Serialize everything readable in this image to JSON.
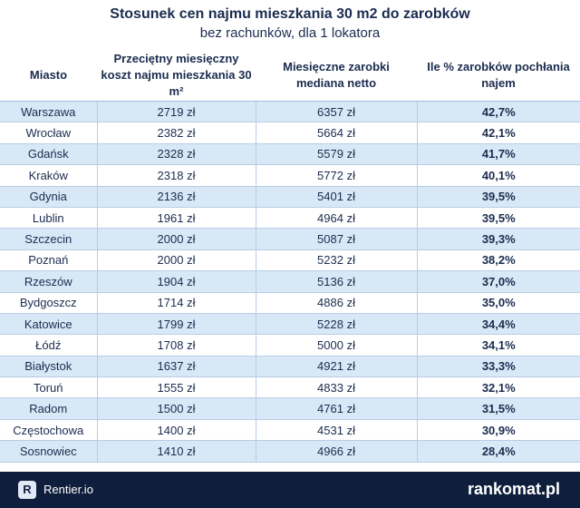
{
  "header": {
    "title": "Stosunek cen najmu mieszkania 30 m2 do zarobków",
    "subtitle": "bez rachunków, dla 1 lokatora"
  },
  "table": {
    "columns": [
      "Miasto",
      "Przeciętny miesięczny koszt najmu mieszkania 30 m²",
      "Miesięczne zarobki mediana netto",
      "Ile % zarobków pochłania najem"
    ],
    "rows": [
      [
        "Warszawa",
        "2719 zł",
        "6357 zł",
        "42,7%"
      ],
      [
        "Wrocław",
        "2382 zł",
        "5664 zł",
        "42,1%"
      ],
      [
        "Gdańsk",
        "2328 zł",
        "5579 zł",
        "41,7%"
      ],
      [
        "Kraków",
        "2318 zł",
        "5772 zł",
        "40,1%"
      ],
      [
        "Gdynia",
        "2136 zł",
        "5401 zł",
        "39,5%"
      ],
      [
        "Lublin",
        "1961 zł",
        "4964 zł",
        "39,5%"
      ],
      [
        "Szczecin",
        "2000 zł",
        "5087 zł",
        "39,3%"
      ],
      [
        "Poznań",
        "2000 zł",
        "5232 zł",
        "38,2%"
      ],
      [
        "Rzeszów",
        "1904 zł",
        "5136 zł",
        "37,0%"
      ],
      [
        "Bydgoszcz",
        "1714 zł",
        "4886 zł",
        "35,0%"
      ],
      [
        "Katowice",
        "1799 zł",
        "5228 zł",
        "34,4%"
      ],
      [
        "Łódź",
        "1708 zł",
        "5000 zł",
        "34,1%"
      ],
      [
        "Białystok",
        "1637 zł",
        "4921 zł",
        "33,3%"
      ],
      [
        "Toruń",
        "1555 zł",
        "4833 zł",
        "32,1%"
      ],
      [
        "Radom",
        "1500 zł",
        "4761 zł",
        "31,5%"
      ],
      [
        "Częstochowa",
        "1400 zł",
        "4531 zł",
        "30,9%"
      ],
      [
        "Sosnowiec",
        "1410 zł",
        "4966 zł",
        "28,4%"
      ]
    ]
  },
  "footer": {
    "left": "Rentier.io",
    "right": "rankomat.pl"
  }
}
